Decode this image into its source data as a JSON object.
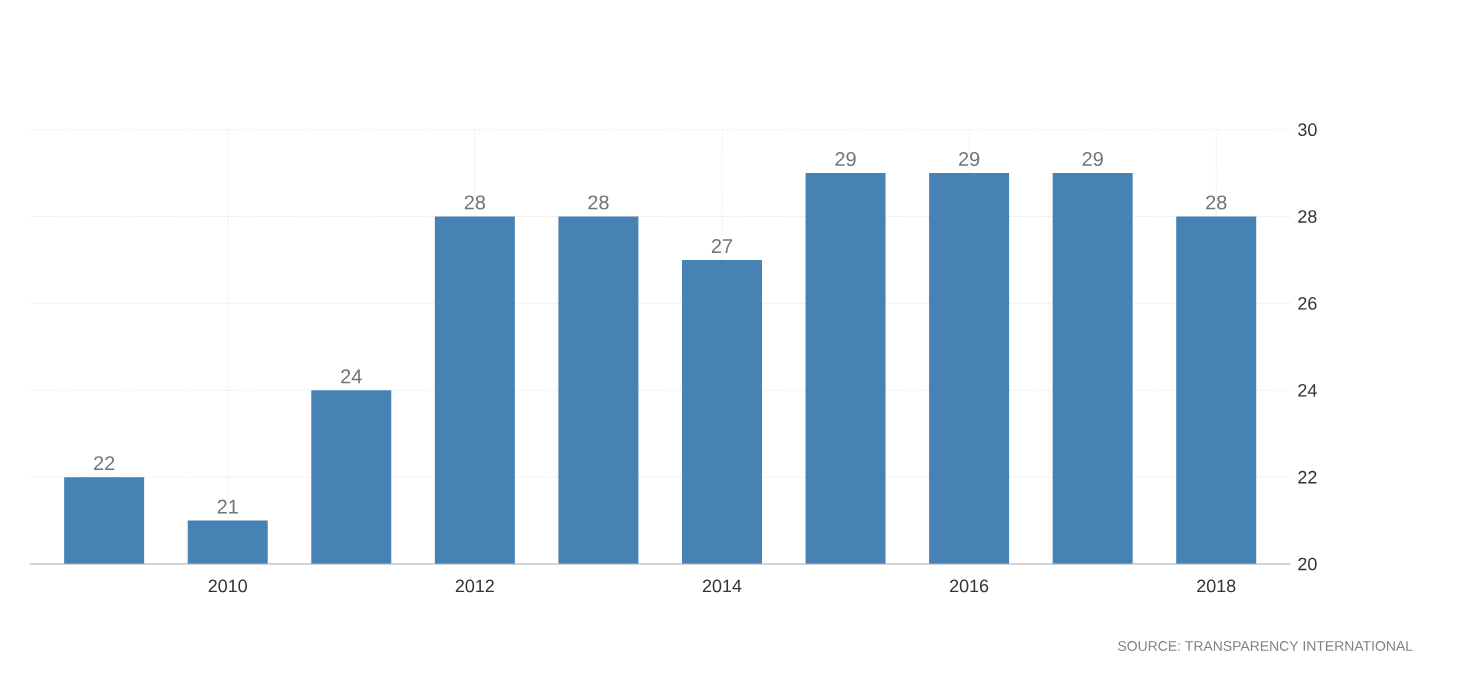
{
  "chart_data": {
    "type": "bar",
    "categories": [
      null,
      "2010",
      null,
      "2012",
      null,
      "2014",
      null,
      "2016",
      null,
      "2018"
    ],
    "values": [
      22,
      21,
      24,
      28,
      28,
      27,
      29,
      29,
      29,
      28
    ],
    "color": "#4682b4",
    "ylim": [
      20,
      30
    ],
    "yticks": [
      20,
      22,
      24,
      26,
      28,
      30
    ],
    "grid": true,
    "data_labels": true,
    "annotations": [
      "SOURCE: TRANSPARENCY INTERNATIONAL"
    ]
  }
}
